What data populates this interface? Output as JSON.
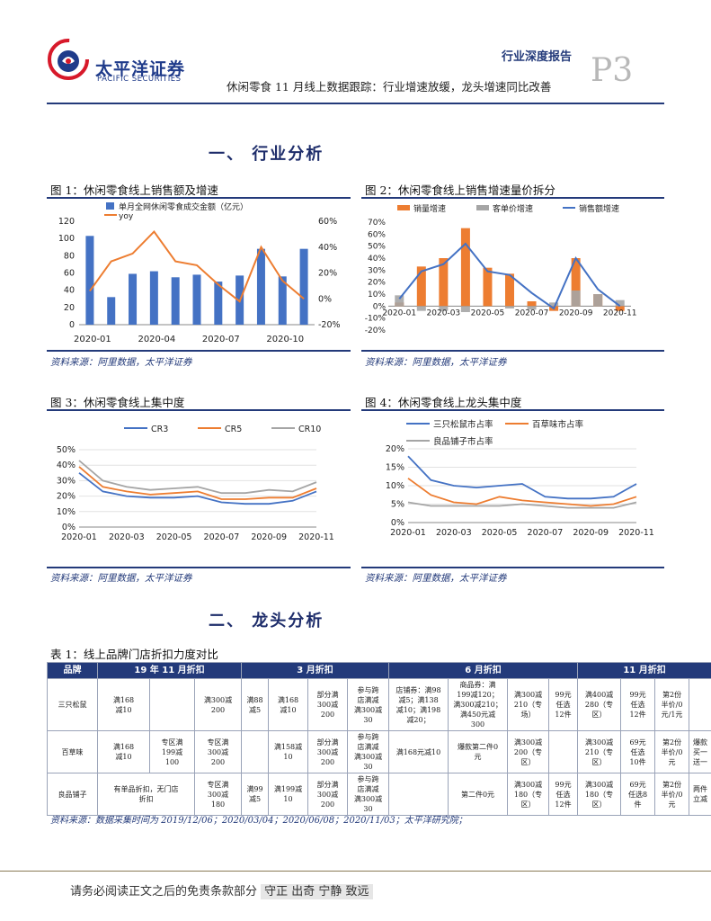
{
  "header": {
    "logo_cn": "太平洋证券",
    "logo_en": "PACIFIC SECURITIES",
    "report_type": "行业深度报告",
    "page_no": "P3",
    "title": "休闲零食 11 月线上数据跟踪：行业增速放缓，龙头增速同比改善"
  },
  "sections": {
    "industry": "一、 行业分析",
    "leaders": "二、 龙头分析"
  },
  "figures": {
    "fig1_title": "图 1：休闲零食线上销售额及增速",
    "fig2_title": "图 2：休闲零食线上销售增速量价拆分",
    "fig3_title": "图 3：休闲零食线上集中度",
    "fig4_title": "图 4：休闲零食线上龙头集中度",
    "source": "资料来源：阿里数据，太平洋证券"
  },
  "chart_data": [
    {
      "type": "bar",
      "legend": [
        "单月全网休闲零食成交金额（亿元）",
        "yoy"
      ],
      "categories": [
        "2020-01",
        "2020-02",
        "2020-03",
        "2020-04",
        "2020-05",
        "2020-06",
        "2020-07",
        "2020-08",
        "2020-09",
        "2020-10",
        "2020-11"
      ],
      "x_tick_labels": [
        "2020-01",
        "2020-04",
        "2020-07",
        "2020-10"
      ],
      "series": [
        {
          "name": "单月全网休闲零食成交金额（亿元）",
          "values": [
            103,
            32,
            59,
            62,
            55,
            58,
            50,
            57,
            88,
            56,
            88
          ],
          "color": "#4472c4"
        },
        {
          "name": "yoy",
          "axis": "right",
          "values": [
            0.06,
            0.29,
            0.35,
            0.52,
            0.29,
            0.26,
            0.11,
            -0.02,
            0.4,
            0.14,
            0.0
          ],
          "color": "#ed7d31"
        }
      ],
      "ylim_left": [
        0,
        120
      ],
      "yticks_left": [
        "120",
        "100",
        "80",
        "60",
        "40",
        "20",
        "0"
      ],
      "ylim_right": [
        -0.2,
        0.6
      ],
      "yticks_right": [
        "60%",
        "40%",
        "20%",
        "0%",
        "-20%"
      ]
    },
    {
      "type": "bar",
      "legend": [
        "销量增速",
        "客单价增速",
        "销售额增速"
      ],
      "categories": [
        "2020-01",
        "2020-02",
        "2020-03",
        "2020-04",
        "2020-05",
        "2020-06",
        "2020-07",
        "2020-08",
        "2020-09",
        "2020-10",
        "2020-11"
      ],
      "x_tick_labels": [
        "2020-01",
        "2020-03",
        "2020-05",
        "2020-07",
        "2020-09",
        "2020-11"
      ],
      "series": [
        {
          "name": "销量增速",
          "values": [
            0.03,
            0.33,
            0.4,
            0.65,
            0.32,
            0.27,
            0.04,
            -0.04,
            0.4,
            0.1,
            -0.04
          ],
          "color": "#ed7d31"
        },
        {
          "name": "客单价增速",
          "values": [
            0.09,
            -0.04,
            -0.04,
            -0.05,
            0.0,
            -0.02,
            -0.03,
            0.03,
            0.13,
            0.1,
            0.05
          ],
          "color": "#a5a5a5"
        },
        {
          "name": "销售额增速",
          "values": [
            0.06,
            0.29,
            0.35,
            0.52,
            0.29,
            0.26,
            0.11,
            -0.02,
            0.4,
            0.14,
            0.0
          ],
          "color": "#4472c4"
        }
      ],
      "ylim": [
        -0.2,
        0.7
      ],
      "yticks": [
        "70%",
        "60%",
        "50%",
        "40%",
        "30%",
        "20%",
        "10%",
        "0%",
        "-10%",
        "-20%"
      ]
    },
    {
      "type": "line",
      "legend": [
        "CR3",
        "CR5",
        "CR10"
      ],
      "categories": [
        "2020-01",
        "2020-02",
        "2020-03",
        "2020-04",
        "2020-05",
        "2020-06",
        "2020-07",
        "2020-08",
        "2020-09",
        "2020-10",
        "2020-11"
      ],
      "x_tick_labels": [
        "2020-01",
        "2020-03",
        "2020-05",
        "2020-07",
        "2020-09",
        "2020-11"
      ],
      "series": [
        {
          "name": "CR3",
          "values": [
            0.35,
            0.23,
            0.2,
            0.19,
            0.19,
            0.2,
            0.16,
            0.15,
            0.15,
            0.17,
            0.23
          ],
          "color": "#4472c4"
        },
        {
          "name": "CR5",
          "values": [
            0.39,
            0.26,
            0.23,
            0.21,
            0.22,
            0.23,
            0.18,
            0.18,
            0.19,
            0.19,
            0.25
          ],
          "color": "#ed7d31"
        },
        {
          "name": "CR10",
          "values": [
            0.43,
            0.3,
            0.26,
            0.24,
            0.25,
            0.26,
            0.22,
            0.22,
            0.24,
            0.23,
            0.29
          ],
          "color": "#a5a5a5"
        }
      ],
      "ylim": [
        0,
        0.5
      ],
      "yticks": [
        "50%",
        "40%",
        "30%",
        "20%",
        "10%",
        "0%"
      ]
    },
    {
      "type": "line",
      "legend": [
        "三只松鼠市占率",
        "百草味市占率",
        "良品铺子市占率"
      ],
      "categories": [
        "2020-01",
        "2020-02",
        "2020-03",
        "2020-04",
        "2020-05",
        "2020-06",
        "2020-07",
        "2020-08",
        "2020-09",
        "2020-10",
        "2020-11"
      ],
      "x_tick_labels": [
        "2020-01",
        "2020-03",
        "2020-05",
        "2020-07",
        "2020-09",
        "2020-11"
      ],
      "series": [
        {
          "name": "三只松鼠市占率",
          "values": [
            0.18,
            0.115,
            0.1,
            0.095,
            0.1,
            0.105,
            0.07,
            0.065,
            0.065,
            0.07,
            0.105
          ],
          "color": "#4472c4"
        },
        {
          "name": "百草味市占率",
          "values": [
            0.12,
            0.075,
            0.055,
            0.05,
            0.07,
            0.06,
            0.055,
            0.05,
            0.045,
            0.05,
            0.07
          ],
          "color": "#ed7d31"
        },
        {
          "name": "良品铺子市占率",
          "values": [
            0.055,
            0.045,
            0.045,
            0.045,
            0.045,
            0.05,
            0.045,
            0.04,
            0.04,
            0.04,
            0.055
          ],
          "color": "#a5a5a5"
        }
      ],
      "ylim": [
        0,
        0.2
      ],
      "yticks": [
        "20%",
        "15%",
        "10%",
        "5%",
        "0%"
      ]
    }
  ],
  "table": {
    "caption": "表 1：线上品牌门店折扣力度对比",
    "headers": [
      "品牌",
      "19 年 11 月折扣",
      "3 月折扣",
      "6 月折扣",
      "11 月折扣"
    ],
    "rows": [
      {
        "brand": "三只松鼠",
        "cells": [
          "满168\n减10",
          "",
          "满300减\n200",
          "满88\n减5",
          "满168\n减10",
          "部分满\n300减\n200",
          "参与跨\n店满减\n满300减\n30",
          "店铺券：满98\n减5；满138\n减10；满198\n减20；",
          "商品券：满\n199减120；\n满300减210；\n满450元减\n300",
          "满300减\n210（专\n场）",
          "99元\n任选\n12件",
          "满400减\n280（专\n区）",
          "99元\n任选\n12件",
          "第2份\n半价/0\n元/1元",
          ""
        ]
      },
      {
        "brand": "百草味",
        "cells": [
          "满168\n减10",
          "专区满\n199减\n100",
          "专区满\n300减\n200",
          "",
          "满158减\n10",
          "部分满\n300减\n200",
          "参与跨\n店满减\n满300减\n30",
          "满168元减10",
          "爆款第二件0\n元",
          "满300减\n200（专\n区）",
          "",
          "满300减\n210（专\n区）",
          "69元\n任选\n10件",
          "第2份\n半价/0\n元",
          "爆款\n买一\n送一"
        ]
      },
      {
        "brand": "良品铺子",
        "cells": [
          "有单品折扣，无门店\n折扣",
          "",
          "专区满\n300减\n180",
          "满99\n减5",
          "满199减\n10",
          "部分满\n300减\n200",
          "参与跨\n店满减\n满300减\n30",
          "",
          "第二件0元",
          "满300减\n180（专\n区）",
          "99元\n任选\n12件",
          "满300减\n180（专\n区）",
          "69元\n任选8\n件",
          "第2份\n半价/0\n元",
          "两件\n立减"
        ]
      }
    ],
    "source": "资料来源：数据采集时间为 2019/12/06；2020/03/04；2020/06/08；2020/11/03；太平洋研究院；"
  },
  "footer": {
    "text": "请务必阅读正文之后的免责条款部分",
    "motto": "守正 出奇 宁静 致远"
  }
}
